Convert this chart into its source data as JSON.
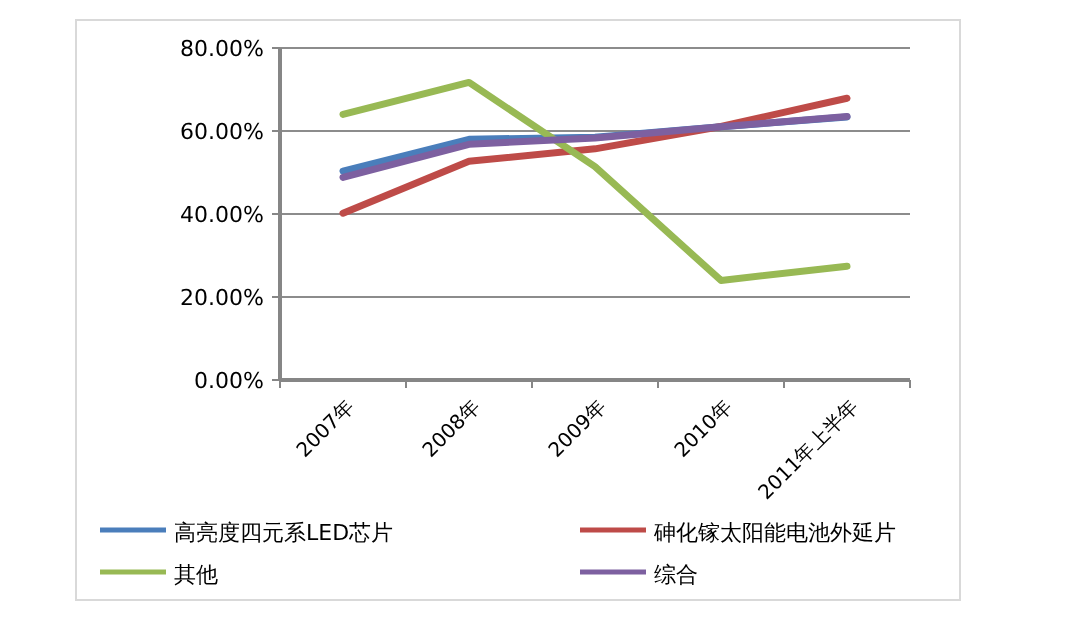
{
  "chart_data": {
    "type": "line",
    "categories": [
      "2007年",
      "2008年",
      "2009年",
      "2010年",
      "2011年上半年"
    ],
    "series": [
      {
        "name": "高亮度四元系LED芯片",
        "color": "#4a7ebb",
        "values": [
          50.3,
          58.0,
          58.5,
          61.0,
          63.4
        ]
      },
      {
        "name": "砷化镓太阳能电池外延片",
        "color": "#be4b48",
        "values": [
          40.2,
          52.7,
          55.7,
          61.1,
          67.9
        ]
      },
      {
        "name": "其他",
        "color": "#98b954",
        "values": [
          64.0,
          71.7,
          51.4,
          24.0,
          27.4
        ]
      },
      {
        "name": "综合",
        "color": "#7d60a0",
        "values": [
          48.8,
          56.8,
          58.3,
          61.0,
          63.5
        ]
      }
    ],
    "ylim": [
      0,
      80
    ],
    "yticks": [
      {
        "value": 0,
        "label": "0.00%"
      },
      {
        "value": 20,
        "label": "20.00%"
      },
      {
        "value": 40,
        "label": "40.00%"
      },
      {
        "value": 60,
        "label": "60.00%"
      },
      {
        "value": 80,
        "label": "80.00%"
      }
    ],
    "grid": "y",
    "legend": "bottom",
    "marker": "none",
    "line_style": "solid"
  }
}
